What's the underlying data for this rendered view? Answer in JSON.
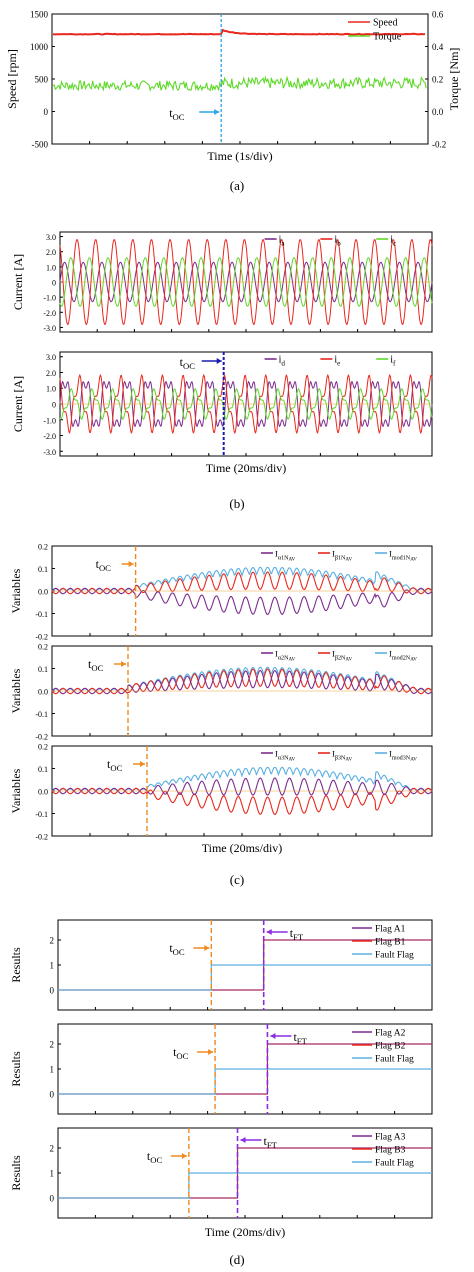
{
  "chart_data": [
    {
      "panel": "(a)",
      "type": "line",
      "xlabel": "Time (1s/div)",
      "ylabel_left": "Speed [rpm]",
      "ylabel_right": "Torque [Nm]",
      "ylim_left": [
        -500,
        1500
      ],
      "ylim_right": [
        -0.2,
        0.6
      ],
      "yticks_left": [
        "1500",
        "1000",
        "500",
        "0",
        "-500"
      ],
      "yticks_right": [
        "0.6",
        "0.4",
        "0.2",
        "0.0",
        "-0.2"
      ],
      "annotation": {
        "text_main": "t",
        "text_sub": "OC"
      },
      "legend": [
        {
          "name": "Speed",
          "color": "#e8281e"
        },
        {
          "name": "Torque",
          "color": "#5fd82a"
        }
      ],
      "series": [
        {
          "name": "Speed",
          "color": "#e8281e",
          "axis": "left",
          "before": 1190,
          "after": 1190,
          "peak": 1260
        },
        {
          "name": "Torque",
          "color": "#5fd82a",
          "axis": "right",
          "mean": 0.16,
          "band_before": [
            0.13,
            0.19
          ],
          "band_after": [
            0.14,
            0.21
          ]
        }
      ],
      "fault_fraction": 0.45
    },
    {
      "panel": "(b)-top",
      "type": "line",
      "ylabel": "Current [A]",
      "ylim": [
        -3.3,
        3.3
      ],
      "yticks": [
        "3.0",
        "2.0",
        "1.0",
        "0",
        "-1.0",
        "-2.0",
        "-3.0"
      ],
      "legend": [
        {
          "name": "i",
          "sub": "a",
          "color": "#7b2d8e"
        },
        {
          "name": "i",
          "sub": "b",
          "color": "#e8281e"
        },
        {
          "name": "i",
          "sub": "c",
          "color": "#5fd82a"
        }
      ],
      "series": [
        {
          "name": "i_a",
          "color": "#7b2d8e",
          "amplitude": 1.3,
          "cycles": 20
        },
        {
          "name": "i_b",
          "color": "#e8281e",
          "amplitude": 2.8,
          "cycles": 20
        },
        {
          "name": "i_c",
          "color": "#5fd82a",
          "amplitude": 1.6,
          "cycles": 20
        }
      ]
    },
    {
      "panel": "(b)-bottom",
      "type": "line",
      "xlabel": "Time (20ms/div)",
      "ylabel": "Current [A]",
      "ylim": [
        -3.3,
        3.3
      ],
      "yticks": [
        "3.0",
        "2.0",
        "1.0",
        "0",
        "-1.0",
        "-2.0",
        "-3.0"
      ],
      "annotation": {
        "text_main": "t",
        "text_sub": "OC"
      },
      "legend": [
        {
          "name": "i",
          "sub": "d",
          "color": "#7b2d8e"
        },
        {
          "name": "i",
          "sub": "e",
          "color": "#e8281e"
        },
        {
          "name": "i",
          "sub": "f",
          "color": "#5fd82a"
        }
      ],
      "series": [
        {
          "name": "i_d",
          "color": "#7b2d8e",
          "amplitude": 2.0,
          "cycles": 18
        },
        {
          "name": "i_e",
          "color": "#e8281e",
          "amplitude": 1.9,
          "cycles": 18
        },
        {
          "name": "i_f",
          "color": "#5fd82a",
          "amplitude": 1.0,
          "cycles": 18
        }
      ],
      "fault_fraction": 0.44
    },
    {
      "panel": "(c)-1",
      "type": "line",
      "ylabel": "Variables",
      "ylim": [
        -0.2,
        0.2
      ],
      "yticks": [
        "0.2",
        "0.1",
        "0.0",
        "-0.1",
        "-0.2"
      ],
      "annotation": {
        "text_main": "t",
        "text_sub": "OC"
      },
      "legend": [
        {
          "name": "I",
          "sub": "α1N",
          "sub2": "AV",
          "color": "#7b2d8e"
        },
        {
          "name": "I",
          "sub": "β1N",
          "sub2": "AV",
          "color": "#e8281e"
        },
        {
          "name": "I",
          "sub": "mod1N",
          "sub2": "AV",
          "color": "#5ab0e0"
        }
      ],
      "fault_fraction": 0.22
    },
    {
      "panel": "(c)-2",
      "type": "line",
      "ylabel": "Variables",
      "ylim": [
        -0.2,
        0.2
      ],
      "yticks": [
        "0.2",
        "0.1",
        "0.0",
        "-0.1",
        "-0.2"
      ],
      "annotation": {
        "text_main": "t",
        "text_sub": "OC"
      },
      "legend": [
        {
          "name": "I",
          "sub": "α2N",
          "sub2": "AV",
          "color": "#7b2d8e"
        },
        {
          "name": "I",
          "sub": "β2N",
          "sub2": "AV",
          "color": "#e8281e"
        },
        {
          "name": "I",
          "sub": "mod2N",
          "sub2": "AV",
          "color": "#5ab0e0"
        }
      ],
      "fault_fraction": 0.2
    },
    {
      "panel": "(c)-3",
      "type": "line",
      "xlabel": "Time (20ms/div)",
      "ylabel": "Variables",
      "ylim": [
        -0.2,
        0.2
      ],
      "yticks": [
        "0.2",
        "0.1",
        "0.0",
        "-0.1",
        "-0.2"
      ],
      "annotation": {
        "text_main": "t",
        "text_sub": "OC"
      },
      "legend": [
        {
          "name": "I",
          "sub": "α3N",
          "sub2": "AV",
          "color": "#7b2d8e"
        },
        {
          "name": "I",
          "sub": "β3N",
          "sub2": "AV",
          "color": "#e8281e"
        },
        {
          "name": "I",
          "sub": "mod3N",
          "sub2": "AV",
          "color": "#5ab0e0"
        }
      ],
      "fault_fraction": 0.25
    },
    {
      "panel": "(d)-1",
      "type": "line",
      "ylabel": "Results",
      "ylim": [
        -0.8,
        2.8
      ],
      "yticks": [
        "2",
        "1",
        "0"
      ],
      "annotations": [
        {
          "text_main": "t",
          "text_sub": "OC",
          "color": "#f08a1e"
        },
        {
          "text_main": "t",
          "text_sub": "FT",
          "color": "#8a2be2"
        }
      ],
      "legend": [
        {
          "name": "Flag A1",
          "color": "#7b2d8e"
        },
        {
          "name": "Flag B1",
          "color": "#e8281e"
        },
        {
          "name": "Fault Flag",
          "color": "#5ab0e0"
        }
      ],
      "oc_fraction": 0.41,
      "ft_fraction": 0.55,
      "flag_after": 2,
      "fault_after": 1
    },
    {
      "panel": "(d)-2",
      "type": "line",
      "ylabel": "Results",
      "ylim": [
        -0.8,
        2.8
      ],
      "yticks": [
        "2",
        "1",
        "0"
      ],
      "annotations": [
        {
          "text_main": "t",
          "text_sub": "OC",
          "color": "#f08a1e"
        },
        {
          "text_main": "t",
          "text_sub": "FT",
          "color": "#8a2be2"
        }
      ],
      "legend": [
        {
          "name": "Flag A2",
          "color": "#7b2d8e"
        },
        {
          "name": "Flag B2",
          "color": "#e8281e"
        },
        {
          "name": "Fault Flag",
          "color": "#5ab0e0"
        }
      ],
      "oc_fraction": 0.42,
      "ft_fraction": 0.56,
      "flag_after": 2,
      "fault_after": 1
    },
    {
      "panel": "(d)-3",
      "type": "line",
      "xlabel": "Time (20ms/div)",
      "ylabel": "Results",
      "ylim": [
        -0.8,
        2.8
      ],
      "yticks": [
        "2",
        "1",
        "0"
      ],
      "annotations": [
        {
          "text_main": "t",
          "text_sub": "OC",
          "color": "#f08a1e"
        },
        {
          "text_main": "t",
          "text_sub": "FT",
          "color": "#8a2be2"
        }
      ],
      "legend": [
        {
          "name": "Flag A3",
          "color": "#7b2d8e"
        },
        {
          "name": "Flag B3",
          "color": "#e8281e"
        },
        {
          "name": "Fault Flag",
          "color": "#5ab0e0"
        }
      ],
      "oc_fraction": 0.35,
      "ft_fraction": 0.48,
      "flag_after": 2,
      "fault_after": 1
    }
  ],
  "panel_labels": [
    "(a)",
    "(b)",
    "(c)",
    "(d)"
  ]
}
